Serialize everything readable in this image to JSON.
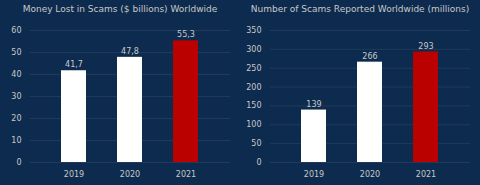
{
  "chart_data": [
    {
      "type": "bar",
      "title": "Money Lost in Scams ($ billions) Worldwide",
      "categories": [
        "2019",
        "2020",
        "2021"
      ],
      "values": [
        41.7,
        47.8,
        55.3
      ],
      "value_labels": [
        "41,7",
        "47,8",
        "55,3"
      ],
      "colors": [
        "#ffffff",
        "#ffffff",
        "#bb0000"
      ],
      "ylim": [
        0,
        60
      ],
      "yticks": [
        0,
        10,
        20,
        30,
        40,
        50,
        60
      ],
      "grid": true,
      "data_labels": true
    },
    {
      "type": "bar",
      "title": "Number of Scams Reported Worldwide (millions)",
      "categories": [
        "2019",
        "2020",
        "2021"
      ],
      "values": [
        139,
        266,
        293
      ],
      "colors": [
        "#ffffff",
        "#ffffff",
        "#bb0000"
      ],
      "ylim": [
        0,
        350
      ],
      "yticks": [
        0,
        50,
        100,
        150,
        200,
        250,
        300,
        350
      ],
      "grid": true,
      "data_labels": true
    }
  ]
}
